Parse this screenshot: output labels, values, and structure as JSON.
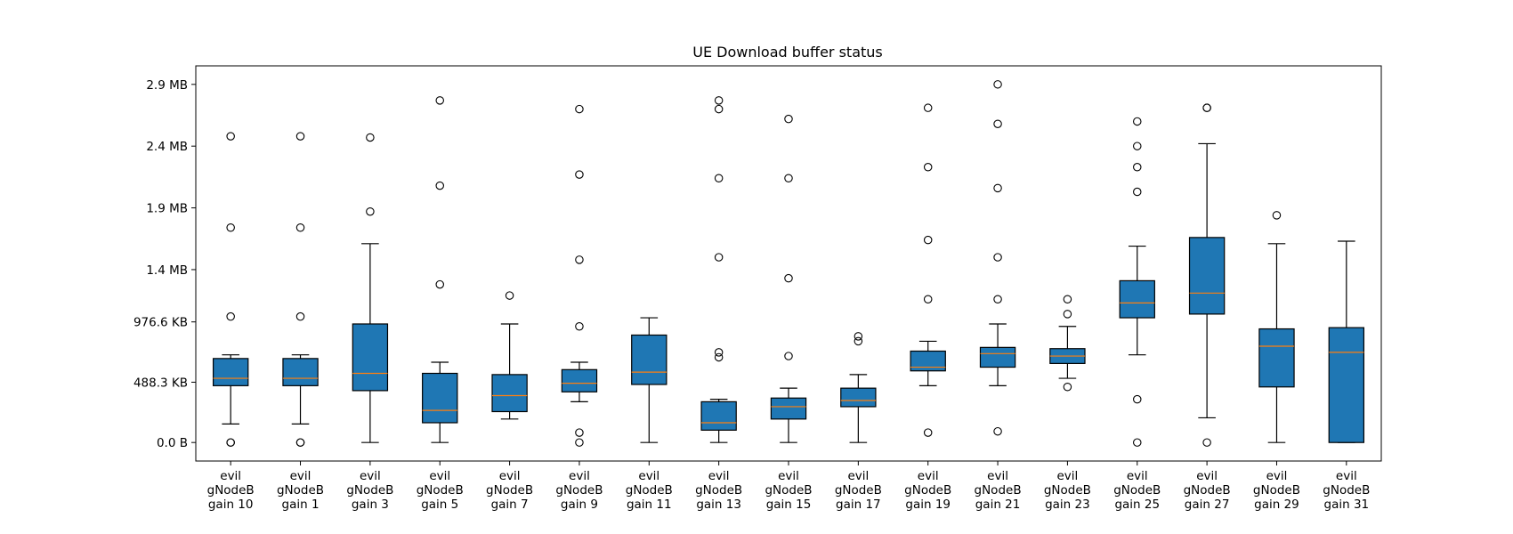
{
  "chart_data": {
    "type": "boxplot",
    "title": "UE Download buffer status",
    "xlabel": "",
    "ylabel": "",
    "ylim": [
      -0.15,
      3.05
    ],
    "y_unit": "MB",
    "yticks": [
      {
        "value": 0.0,
        "label": "0.0 B"
      },
      {
        "value": 0.4883,
        "label": "488.3 KB"
      },
      {
        "value": 0.9766,
        "label": "976.6 KB"
      },
      {
        "value": 1.4,
        "label": "1.4 MB"
      },
      {
        "value": 1.9,
        "label": "1.9 MB"
      },
      {
        "value": 2.4,
        "label": "2.4 MB"
      },
      {
        "value": 2.9,
        "label": "2.9 MB"
      }
    ],
    "box_color": "#1f77b4",
    "median_color": "#ff7f0e",
    "categories": [
      [
        "evil",
        "gNodeB",
        "gain 10"
      ],
      [
        "evil",
        "gNodeB",
        "gain 1"
      ],
      [
        "evil",
        "gNodeB",
        "gain 3"
      ],
      [
        "evil",
        "gNodeB",
        "gain 5"
      ],
      [
        "evil",
        "gNodeB",
        "gain 7"
      ],
      [
        "evil",
        "gNodeB",
        "gain 9"
      ],
      [
        "evil",
        "gNodeB",
        "gain 11"
      ],
      [
        "evil",
        "gNodeB",
        "gain 13"
      ],
      [
        "evil",
        "gNodeB",
        "gain 15"
      ],
      [
        "evil",
        "gNodeB",
        "gain 17"
      ],
      [
        "evil",
        "gNodeB",
        "gain 19"
      ],
      [
        "evil",
        "gNodeB",
        "gain 21"
      ],
      [
        "evil",
        "gNodeB",
        "gain 23"
      ],
      [
        "evil",
        "gNodeB",
        "gain 25"
      ],
      [
        "evil",
        "gNodeB",
        "gain 27"
      ],
      [
        "evil",
        "gNodeB",
        "gain 29"
      ],
      [
        "evil",
        "gNodeB",
        "gain 31"
      ]
    ],
    "boxes": [
      {
        "whislo": 0.15,
        "q1": 0.46,
        "med": 0.52,
        "q3": 0.68,
        "whishi": 0.71,
        "fliers": [
          0.0,
          0.0,
          1.02,
          1.74,
          2.48
        ]
      },
      {
        "whislo": 0.15,
        "q1": 0.46,
        "med": 0.52,
        "q3": 0.68,
        "whishi": 0.71,
        "fliers": [
          0.0,
          0.0,
          1.02,
          1.74,
          2.48
        ]
      },
      {
        "whislo": 0.0,
        "q1": 0.42,
        "med": 0.56,
        "q3": 0.96,
        "whishi": 1.61,
        "fliers": [
          1.87,
          2.47
        ]
      },
      {
        "whislo": 0.0,
        "q1": 0.16,
        "med": 0.26,
        "q3": 0.56,
        "whishi": 0.65,
        "fliers": [
          1.28,
          2.08,
          2.77
        ]
      },
      {
        "whislo": 0.19,
        "q1": 0.25,
        "med": 0.38,
        "q3": 0.55,
        "whishi": 0.96,
        "fliers": [
          1.19
        ]
      },
      {
        "whislo": 0.33,
        "q1": 0.41,
        "med": 0.48,
        "q3": 0.59,
        "whishi": 0.65,
        "fliers": [
          0.0,
          0.08,
          0.94,
          1.48,
          2.17,
          2.7
        ]
      },
      {
        "whislo": 0.0,
        "q1": 0.47,
        "med": 0.57,
        "q3": 0.87,
        "whishi": 1.01,
        "fliers": []
      },
      {
        "whislo": 0.0,
        "q1": 0.1,
        "med": 0.16,
        "q3": 0.33,
        "whishi": 0.35,
        "fliers": [
          0.69,
          0.73,
          1.5,
          2.14,
          2.7,
          2.77
        ]
      },
      {
        "whislo": 0.0,
        "q1": 0.19,
        "med": 0.29,
        "q3": 0.36,
        "whishi": 0.44,
        "fliers": [
          0.7,
          1.33,
          2.14,
          2.62
        ]
      },
      {
        "whislo": 0.0,
        "q1": 0.29,
        "med": 0.34,
        "q3": 0.44,
        "whishi": 0.55,
        "fliers": [
          0.82,
          0.86
        ]
      },
      {
        "whislo": 0.46,
        "q1": 0.58,
        "med": 0.61,
        "q3": 0.74,
        "whishi": 0.82,
        "fliers": [
          0.08,
          1.16,
          1.64,
          2.23,
          2.71
        ]
      },
      {
        "whislo": 0.46,
        "q1": 0.61,
        "med": 0.72,
        "q3": 0.77,
        "whishi": 0.96,
        "fliers": [
          0.09,
          1.16,
          1.5,
          2.06,
          2.58,
          2.9
        ]
      },
      {
        "whislo": 0.52,
        "q1": 0.64,
        "med": 0.7,
        "q3": 0.76,
        "whishi": 0.94,
        "fliers": [
          0.45,
          1.04,
          1.16
        ]
      },
      {
        "whislo": 0.71,
        "q1": 1.01,
        "med": 1.13,
        "q3": 1.31,
        "whishi": 1.59,
        "fliers": [
          0.0,
          0.35,
          2.03,
          2.23,
          2.4,
          2.6
        ]
      },
      {
        "whislo": 0.2,
        "q1": 1.04,
        "med": 1.21,
        "q3": 1.66,
        "whishi": 2.42,
        "fliers": [
          0.0,
          2.71,
          2.71
        ]
      },
      {
        "whislo": 0.0,
        "q1": 0.45,
        "med": 0.78,
        "q3": 0.92,
        "whishi": 1.61,
        "fliers": [
          1.84
        ]
      },
      {
        "whislo": 0.0,
        "q1": 0.0,
        "med": 0.73,
        "q3": 0.93,
        "whishi": 1.63,
        "fliers": []
      }
    ]
  }
}
